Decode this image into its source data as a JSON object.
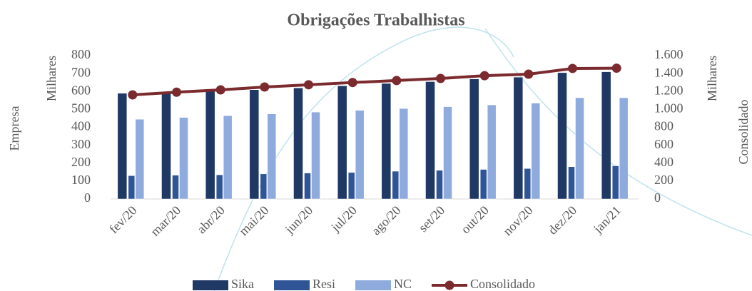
{
  "chart_data": {
    "type": "bar",
    "title": "Obrigações Trabalhistas",
    "y_label": "Empresa",
    "y_unit": "Milhares",
    "y2_label": "Consolidado",
    "y2_unit": "Milhares",
    "categories": [
      "fev/20",
      "mar/20",
      "abr/20",
      "mai/20",
      "jun/20",
      "jul/20",
      "ago/20",
      "set/20",
      "out/20",
      "nov/20",
      "dez/20",
      "jan/21"
    ],
    "series": [
      {
        "name": "Sika",
        "type": "bar",
        "color": "#1f3864",
        "values": [
          590,
          595,
          600,
          610,
          620,
          632,
          645,
          655,
          670,
          680,
          705,
          710
        ]
      },
      {
        "name": "Resi",
        "type": "bar",
        "color": "#2f5597",
        "values": [
          130,
          133,
          135,
          140,
          145,
          148,
          155,
          160,
          165,
          170,
          180,
          185
        ]
      },
      {
        "name": "NC",
        "type": "bar",
        "color": "#8faadc",
        "values": [
          445,
          455,
          465,
          475,
          485,
          495,
          505,
          515,
          525,
          535,
          565,
          565
        ]
      },
      {
        "name": "Consolidado",
        "type": "line",
        "axis": "y2",
        "color": "#7b2a2e",
        "values": [
          1162,
          1192,
          1218,
          1250,
          1275,
          1300,
          1322,
          1345,
          1376,
          1393,
          1457,
          1460
        ]
      }
    ],
    "ylim": [
      0,
      800
    ],
    "yticks": [
      0,
      100,
      200,
      300,
      400,
      500,
      600,
      700,
      800
    ],
    "y2lim": [
      0,
      1600
    ],
    "y2ticks": [
      0,
      200,
      400,
      600,
      800,
      {
        "value": 1000,
        "label": "1.000"
      },
      {
        "value": 1200,
        "label": "1.200"
      },
      {
        "value": 1400,
        "label": "1.400"
      },
      {
        "value": 1600,
        "label": "1.600"
      }
    ],
    "legend": "bottom",
    "grid": false
  }
}
